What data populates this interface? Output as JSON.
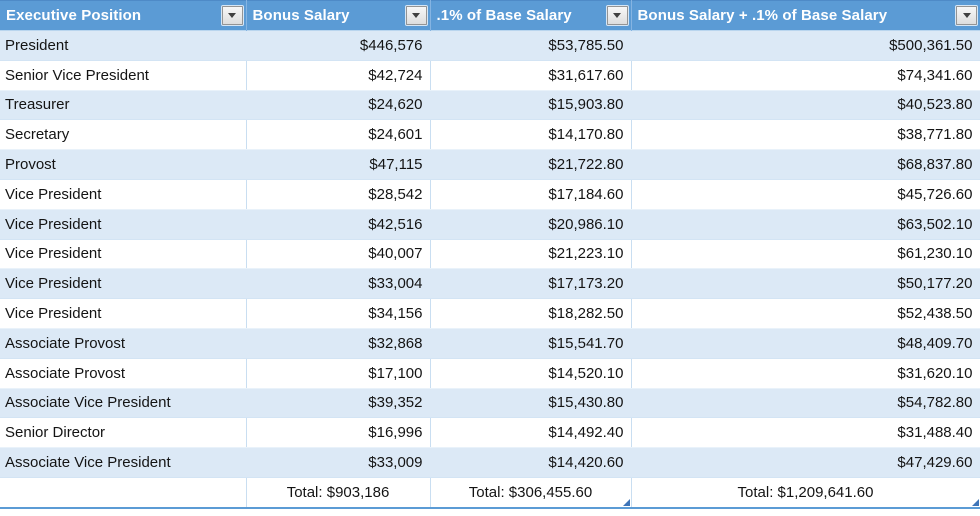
{
  "app": "spreadsheet",
  "colors": {
    "header_bg": "#5B9BD5",
    "header_text": "#FFFFFF",
    "band_row_bg": "#DCE9F6",
    "gridline": "#C9DEF1",
    "table_bottom_border": "#5B9BD5",
    "resize_handle": "#3E74B8",
    "cell_text": "#141414",
    "filter_button_bg": "#E6E6E6"
  },
  "icons": {
    "filter_dropdown": "chevron-down"
  },
  "table": {
    "columns": [
      {
        "label": "Executive Position"
      },
      {
        "label": "Bonus Salary"
      },
      {
        "label": ".1% of Base Salary"
      },
      {
        "label": "Bonus Salary + .1% of Base Salary"
      }
    ],
    "rows": [
      [
        "President",
        "$446,576",
        "$53,785.50",
        "$500,361.50"
      ],
      [
        "Senior Vice President",
        "$42,724",
        "$31,617.60",
        "$74,341.60"
      ],
      [
        "Treasurer",
        "$24,620",
        "$15,903.80",
        "$40,523.80"
      ],
      [
        "Secretary",
        "$24,601",
        "$14,170.80",
        "$38,771.80"
      ],
      [
        "Provost",
        "$47,115",
        "$21,722.80",
        "$68,837.80"
      ],
      [
        "Vice President",
        "$28,542",
        "$17,184.60",
        "$45,726.60"
      ],
      [
        "Vice President",
        "$42,516",
        "$20,986.10",
        "$63,502.10"
      ],
      [
        "Vice President",
        "$40,007",
        "$21,223.10",
        "$61,230.10"
      ],
      [
        "Vice President",
        "$33,004",
        "$17,173.20",
        "$50,177.20"
      ],
      [
        "Vice President",
        "$34,156",
        "$18,282.50",
        "$52,438.50"
      ],
      [
        "Associate Provost",
        "$32,868",
        "$15,541.70",
        "$48,409.70"
      ],
      [
        "Associate Provost",
        "$17,100",
        "$14,520.10",
        "$31,620.10"
      ],
      [
        "Associate Vice President",
        "$39,352",
        "$15,430.80",
        "$54,782.80"
      ],
      [
        "Senior Director",
        "$16,996",
        "$14,492.40",
        "$31,488.40"
      ],
      [
        "Associate Vice President",
        "$33,009",
        "$14,420.60",
        "$47,429.60"
      ]
    ],
    "totals": [
      "",
      "Total: $903,186",
      "Total: $306,455.60",
      "Total: $1,209,641.60"
    ]
  }
}
